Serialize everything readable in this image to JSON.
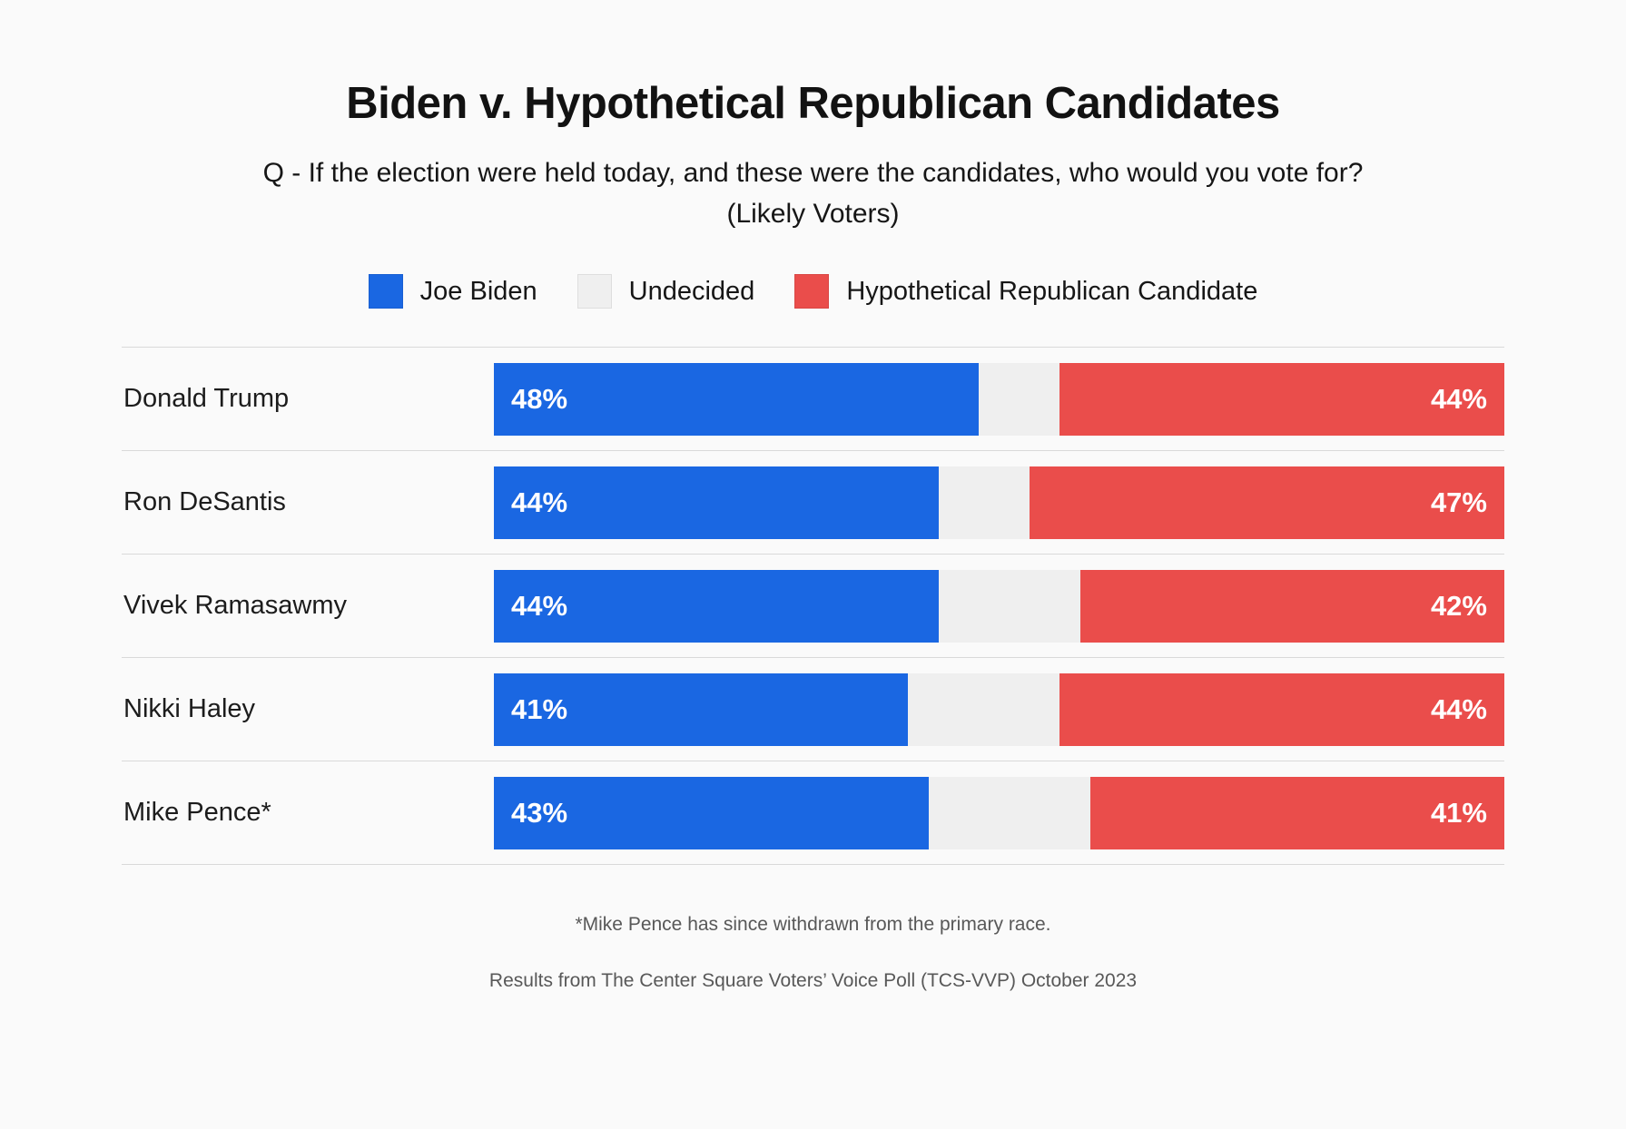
{
  "page": {
    "background_color": "#fafafa",
    "separator_color": "#d9d9d9"
  },
  "header": {
    "title": "Biden v. Hypothetical Republican Candidates",
    "subtitle_line1": "Q - If the election were held today, and these were the candidates, who would you vote for?",
    "subtitle_line2": "(Likely Voters)"
  },
  "legend": {
    "items": [
      {
        "label": "Joe Biden",
        "color": "#1a67e2"
      },
      {
        "label": "Undecided",
        "color": "#efefef"
      },
      {
        "label": "Hypothetical Republican Candidate",
        "color": "#ea4d4b"
      }
    ]
  },
  "chart_data": {
    "type": "bar",
    "orientation": "horizontal",
    "stacked": true,
    "title": "Biden v. Hypothetical Republican Candidates",
    "subtitle": "Q - If the election were held today, and these were the candidates, who would you vote for? (Likely Voters)",
    "categories": [
      "Donald Trump",
      "Ron DeSantis",
      "Vivek Ramasawmy",
      "Nikki Haley",
      "Mike Pence*"
    ],
    "series": [
      {
        "name": "Joe Biden",
        "color": "#1a67e2",
        "labeled": true,
        "values": [
          48,
          44,
          44,
          41,
          43
        ]
      },
      {
        "name": "Undecided",
        "color": "#efefef",
        "labeled": false,
        "values": [
          8,
          9,
          14,
          15,
          16
        ]
      },
      {
        "name": "Hypothetical Republican Candidate",
        "color": "#ea4d4b",
        "labeled": true,
        "values": [
          44,
          47,
          42,
          44,
          41
        ]
      }
    ],
    "value_suffix": "%",
    "xlim": [
      0,
      100
    ],
    "grid": false,
    "legend_position": "top"
  },
  "footnotes": {
    "note1": "*Mike Pence has since withdrawn from the primary race.",
    "note2": "Results from The Center Square Voters’ Voice Poll (TCS-VVP) October 2023"
  }
}
